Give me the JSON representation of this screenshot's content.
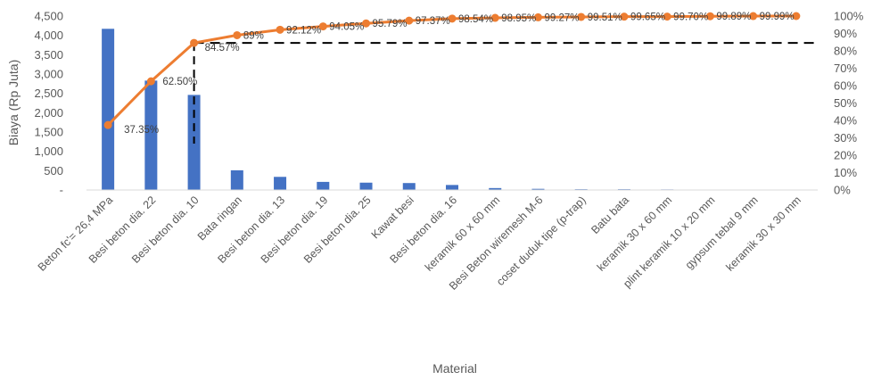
{
  "chart_data": {
    "type": "bar",
    "xlabel": "Material",
    "ylabel": "Biaya (Rp Juta)",
    "categories": [
      "Beton fc'= 26,4 MPa",
      "Besi beton dia. 22",
      "Besi beton dia. 10",
      "Bata ringan",
      "Besi beton dia. 13",
      "Besi beton dia. 19",
      "Besi beton dia. 25",
      "Kawat besi",
      "Besi beton dia. 16",
      "keramik 60 x 60 mm",
      "Besi Beton wiremesh M-6",
      "coset duduk tipe (p-trap)",
      "Batu bata",
      "keramik 30 x 60 mm",
      "plint keramik 10 x 20 mm",
      "gypsum tebal 9 mm",
      "keramik 30 x 30 mm"
    ],
    "series": [
      {
        "type": "bar",
        "values": [
          4170,
          2830,
          2460,
          510,
          340,
          210,
          190,
          180,
          130,
          50,
          30,
          20,
          20,
          15,
          10,
          10,
          5
        ],
        "color": "#4472C4"
      },
      {
        "type": "line",
        "axis": "right",
        "values": [
          37.35,
          62.5,
          84.57,
          89,
          92.12,
          94.05,
          95.79,
          97.37,
          98.54,
          98.95,
          99.27,
          99.51,
          99.65,
          99.7,
          99.89,
          99.99,
          100
        ],
        "labels": [
          "37.35%",
          "62.50%",
          "84.57%",
          "89%",
          "92.12%",
          "94.05%",
          "95.79%",
          "97.37%",
          "98.54%",
          "98.95%",
          "99.27%",
          "99.51%",
          "99.65%",
          "99.70%",
          "99.89%",
          "99.99%",
          ""
        ],
        "color": "#ED7D31"
      }
    ],
    "y_left": {
      "min": 0,
      "max": 4500,
      "step": 500,
      "ticks": [
        "-",
        "500",
        "1,000",
        "1,500",
        "2,000",
        "2,500",
        "3,000",
        "3,500",
        "4,000",
        "4,500"
      ]
    },
    "y_right": {
      "min": 0,
      "max": 100,
      "step": 10,
      "ticks": [
        "0%",
        "10%",
        "20%",
        "30%",
        "40%",
        "50%",
        "60%",
        "70%",
        "80%",
        "90%",
        "100%"
      ]
    },
    "reference_line": {
      "value_pct": 84.57,
      "category_index": 2,
      "style": "dashed",
      "color": "#000000"
    },
    "grid": false,
    "legend": "none"
  }
}
